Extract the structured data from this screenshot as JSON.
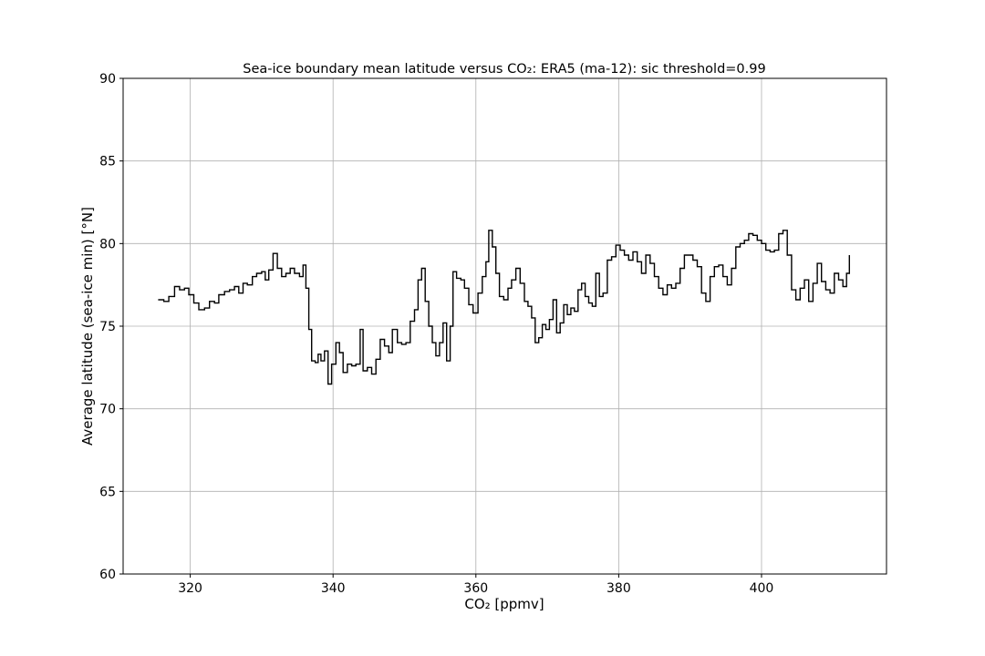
{
  "chart_data": {
    "type": "line",
    "title": "Sea-ice boundary mean latitude versus CO₂: ERA5 (ma-12): sic threshold=0.99",
    "xlabel": "CO₂ [ppmv]",
    "ylabel": "Average latitude (sea-ice min) [°N]",
    "xlim": [
      310.6,
      417.5
    ],
    "ylim": [
      60,
      90
    ],
    "xticks": [
      320,
      340,
      360,
      380,
      400
    ],
    "yticks": [
      60,
      65,
      70,
      75,
      80,
      85,
      90
    ],
    "grid": true,
    "line_color": "#000000",
    "series": [
      {
        "values": [
          [
            315.5,
            76.6
          ],
          [
            316.3,
            76.5
          ],
          [
            317.0,
            76.8
          ],
          [
            317.8,
            77.4
          ],
          [
            318.5,
            77.2
          ],
          [
            319.2,
            77.3
          ],
          [
            319.8,
            76.9
          ],
          [
            320.5,
            76.4
          ],
          [
            321.2,
            76.0
          ],
          [
            322.0,
            76.1
          ],
          [
            322.7,
            76.5
          ],
          [
            323.4,
            76.4
          ],
          [
            324.0,
            76.9
          ],
          [
            324.8,
            77.1
          ],
          [
            325.5,
            77.2
          ],
          [
            326.2,
            77.4
          ],
          [
            326.8,
            77.0
          ],
          [
            327.4,
            77.6
          ],
          [
            328.0,
            77.5
          ],
          [
            328.7,
            78.0
          ],
          [
            329.3,
            78.2
          ],
          [
            330.0,
            78.3
          ],
          [
            330.5,
            77.8
          ],
          [
            331.0,
            78.4
          ],
          [
            331.6,
            79.4
          ],
          [
            332.2,
            78.5
          ],
          [
            332.8,
            78.0
          ],
          [
            333.4,
            78.2
          ],
          [
            334.0,
            78.5
          ],
          [
            334.6,
            78.2
          ],
          [
            335.3,
            78.0
          ],
          [
            335.8,
            78.7
          ],
          [
            336.2,
            77.3
          ],
          [
            336.6,
            74.8
          ],
          [
            337.0,
            72.9
          ],
          [
            337.5,
            72.8
          ],
          [
            337.9,
            73.3
          ],
          [
            338.3,
            72.9
          ],
          [
            338.8,
            73.5
          ],
          [
            339.3,
            71.5
          ],
          [
            339.8,
            72.7
          ],
          [
            340.4,
            74.0
          ],
          [
            340.9,
            73.4
          ],
          [
            341.4,
            72.2
          ],
          [
            342.0,
            72.7
          ],
          [
            342.6,
            72.6
          ],
          [
            343.2,
            72.7
          ],
          [
            343.8,
            74.8
          ],
          [
            344.2,
            72.3
          ],
          [
            344.8,
            72.5
          ],
          [
            345.4,
            72.1
          ],
          [
            346.0,
            73.0
          ],
          [
            346.6,
            74.2
          ],
          [
            347.2,
            73.8
          ],
          [
            347.8,
            73.4
          ],
          [
            348.3,
            74.8
          ],
          [
            349.0,
            74.0
          ],
          [
            349.6,
            73.9
          ],
          [
            350.2,
            74.0
          ],
          [
            350.8,
            75.3
          ],
          [
            351.4,
            76.0
          ],
          [
            351.9,
            77.8
          ],
          [
            352.4,
            78.5
          ],
          [
            352.9,
            76.5
          ],
          [
            353.4,
            75.0
          ],
          [
            353.9,
            74.0
          ],
          [
            354.4,
            73.2
          ],
          [
            354.9,
            74.0
          ],
          [
            355.4,
            75.2
          ],
          [
            355.9,
            72.9
          ],
          [
            356.4,
            75.0
          ],
          [
            356.8,
            78.3
          ],
          [
            357.3,
            77.9
          ],
          [
            357.9,
            77.8
          ],
          [
            358.4,
            77.3
          ],
          [
            359.0,
            76.3
          ],
          [
            359.6,
            75.8
          ],
          [
            360.3,
            77.0
          ],
          [
            360.9,
            78.0
          ],
          [
            361.4,
            78.9
          ],
          [
            361.8,
            80.8
          ],
          [
            362.3,
            79.8
          ],
          [
            362.8,
            78.2
          ],
          [
            363.3,
            76.8
          ],
          [
            363.9,
            76.6
          ],
          [
            364.5,
            77.3
          ],
          [
            365.0,
            77.8
          ],
          [
            365.6,
            78.5
          ],
          [
            366.2,
            77.6
          ],
          [
            366.8,
            76.5
          ],
          [
            367.3,
            76.2
          ],
          [
            367.8,
            75.5
          ],
          [
            368.3,
            74.0
          ],
          [
            368.8,
            74.3
          ],
          [
            369.3,
            75.1
          ],
          [
            369.8,
            74.8
          ],
          [
            370.3,
            75.4
          ],
          [
            370.8,
            76.6
          ],
          [
            371.3,
            74.6
          ],
          [
            371.8,
            75.2
          ],
          [
            372.3,
            76.3
          ],
          [
            372.8,
            75.7
          ],
          [
            373.3,
            76.1
          ],
          [
            373.8,
            75.9
          ],
          [
            374.3,
            77.2
          ],
          [
            374.8,
            77.6
          ],
          [
            375.3,
            76.8
          ],
          [
            375.8,
            76.4
          ],
          [
            376.3,
            76.2
          ],
          [
            376.8,
            78.2
          ],
          [
            377.3,
            76.8
          ],
          [
            377.8,
            77.0
          ],
          [
            378.4,
            79.0
          ],
          [
            379.0,
            79.2
          ],
          [
            379.6,
            79.9
          ],
          [
            380.2,
            79.6
          ],
          [
            380.8,
            79.3
          ],
          [
            381.4,
            79.0
          ],
          [
            382.0,
            79.5
          ],
          [
            382.6,
            78.9
          ],
          [
            383.2,
            78.2
          ],
          [
            383.8,
            79.3
          ],
          [
            384.4,
            78.8
          ],
          [
            385.0,
            78.0
          ],
          [
            385.6,
            77.3
          ],
          [
            386.2,
            76.9
          ],
          [
            386.8,
            77.5
          ],
          [
            387.4,
            77.3
          ],
          [
            388.0,
            77.6
          ],
          [
            388.6,
            78.5
          ],
          [
            389.2,
            79.3
          ],
          [
            389.8,
            79.3
          ],
          [
            390.4,
            79.0
          ],
          [
            391.0,
            78.6
          ],
          [
            391.6,
            77.0
          ],
          [
            392.2,
            76.5
          ],
          [
            392.8,
            78.0
          ],
          [
            393.4,
            78.6
          ],
          [
            394.0,
            78.7
          ],
          [
            394.6,
            78.0
          ],
          [
            395.2,
            77.5
          ],
          [
            395.8,
            78.5
          ],
          [
            396.4,
            79.8
          ],
          [
            397.0,
            80.0
          ],
          [
            397.6,
            80.2
          ],
          [
            398.2,
            80.6
          ],
          [
            398.8,
            80.5
          ],
          [
            399.4,
            80.2
          ],
          [
            400.0,
            80.0
          ],
          [
            400.6,
            79.6
          ],
          [
            401.2,
            79.5
          ],
          [
            401.8,
            79.6
          ],
          [
            402.4,
            80.6
          ],
          [
            403.0,
            80.8
          ],
          [
            403.6,
            79.3
          ],
          [
            404.2,
            77.2
          ],
          [
            404.8,
            76.6
          ],
          [
            405.4,
            77.3
          ],
          [
            406.0,
            77.8
          ],
          [
            406.6,
            76.5
          ],
          [
            407.2,
            77.6
          ],
          [
            407.8,
            78.8
          ],
          [
            408.4,
            77.7
          ],
          [
            409.0,
            77.2
          ],
          [
            409.6,
            77.0
          ],
          [
            410.2,
            78.2
          ],
          [
            410.8,
            77.8
          ],
          [
            411.4,
            77.4
          ],
          [
            411.9,
            78.2
          ],
          [
            412.3,
            79.3
          ]
        ]
      }
    ]
  }
}
